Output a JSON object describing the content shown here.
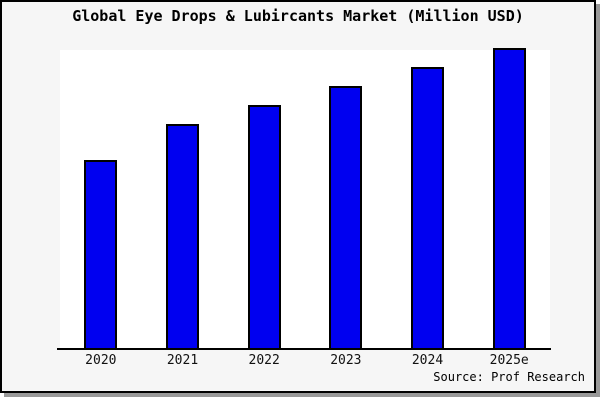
{
  "chart_data": {
    "type": "bar",
    "title": "Global Eye Drops & Lubircants Market (Million USD)",
    "categories": [
      "2020",
      "2021",
      "2022",
      "2023",
      "2024",
      "2025e"
    ],
    "values": [
      62.7,
      74.7,
      81.0,
      87.3,
      93.7,
      100.0
    ],
    "value_scale": "relative units, tallest bar (2025e) = 100; no numeric y-axis or gridlines shown in chart",
    "xlabel": "",
    "ylabel": "",
    "grid": false,
    "legend": "none",
    "source": "Source: Prof Research",
    "colors": {
      "bar_fill": "#0000f0",
      "bar_border": "#000000",
      "plot_bg": "#ffffff",
      "frame_bg": "#f6f6f6",
      "frame_border": "#000000",
      "frame_shadow": "#999999",
      "text": "#000000"
    }
  }
}
